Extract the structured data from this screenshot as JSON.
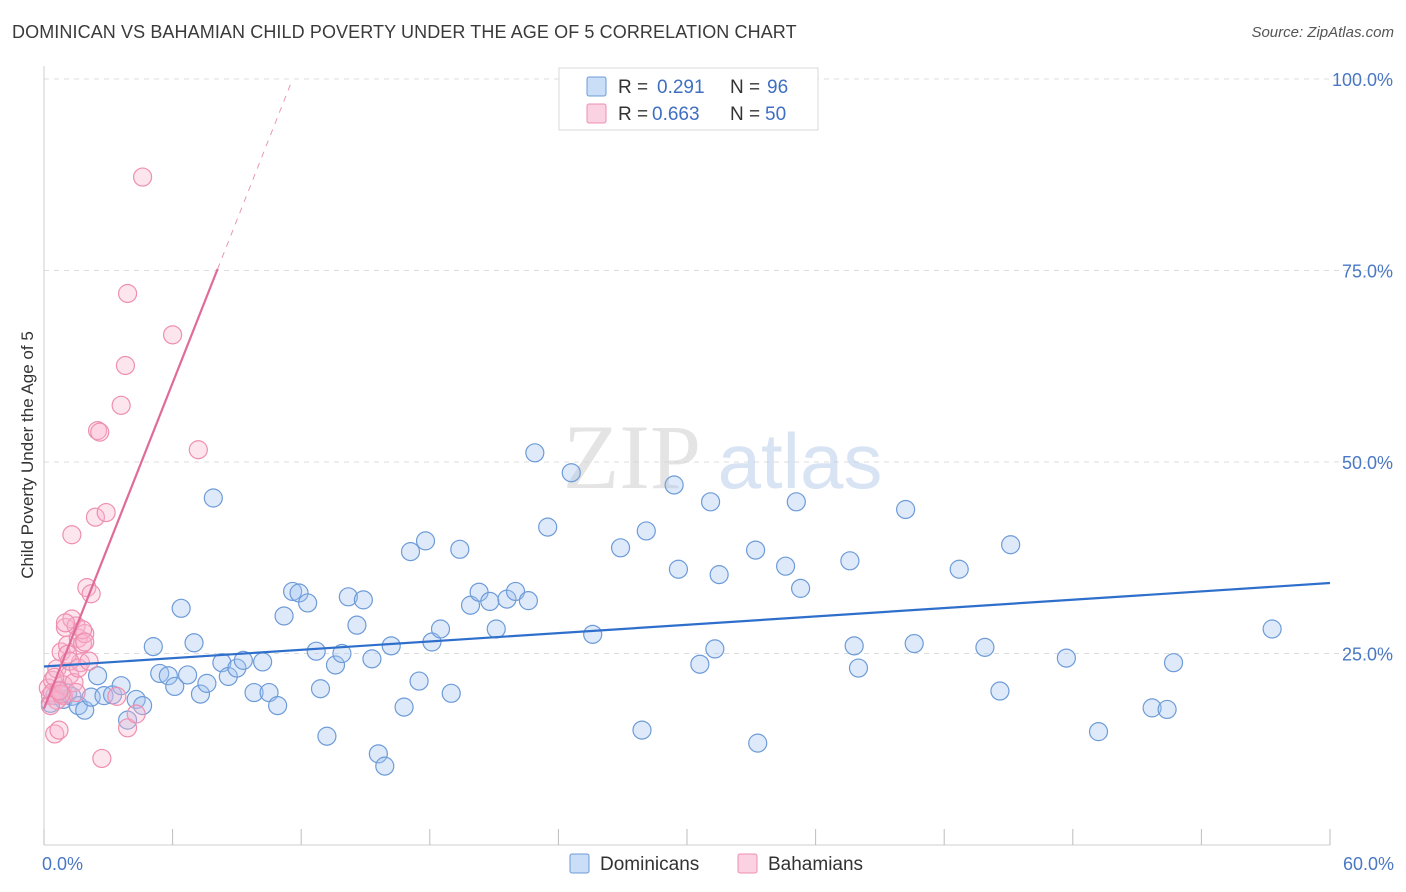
{
  "title": "DOMINICAN VS BAHAMIAN CHILD POVERTY UNDER THE AGE OF 5 CORRELATION CHART",
  "source": "Source: ZipAtlas.com",
  "watermark": {
    "zip": "ZIP",
    "atlas": "atlas"
  },
  "colors": {
    "dominicans_fill": "rgba(160,195,240,0.35)",
    "dominicans_stroke": "#6d9bd8",
    "dominicans_line": "#2f6fcc",
    "bahamians_fill": "rgba(248,180,205,0.35)",
    "bahamians_stroke": "#ee8fb0",
    "bahamians_line": "#e06b98",
    "tick_label": "#4a78c4",
    "grid": "#dcdcdc"
  },
  "legend": {
    "rows": [
      {
        "r_label": "R = ",
        "r_value": "0.291",
        "n_label": "N = ",
        "n_value": "96"
      },
      {
        "r_label": "R = ",
        "r_value": "0.663",
        "n_label": "N = ",
        "n_value": "50"
      }
    ],
    "bottom": [
      "Dominicans",
      "Bahamians"
    ]
  },
  "chart_data": {
    "type": "scatter",
    "title": "DOMINICAN VS BAHAMIAN CHILD POVERTY UNDER THE AGE OF 5 CORRELATION CHART",
    "xlabel": "",
    "ylabel": "Child Poverty Under the Age of 5",
    "xlim": [
      0,
      60
    ],
    "ylim": [
      0,
      100
    ],
    "x_tick_labels": [
      "0.0%",
      "60.0%"
    ],
    "y_ticks": [
      25,
      50,
      75,
      100
    ],
    "y_tick_labels": [
      "25.0%",
      "50.0%",
      "75.0%",
      "100.0%"
    ],
    "grid": true,
    "legend_position": "top-center",
    "series": [
      {
        "name": "Dominicans",
        "r": 0.291,
        "n": 96,
        "trend": {
          "x": [
            0,
            60
          ],
          "y": [
            23.3,
            34.2
          ]
        },
        "points": [
          [
            0.3,
            18.5
          ],
          [
            0.5,
            19.5
          ],
          [
            0.7,
            20.2
          ],
          [
            0.9,
            19.0
          ],
          [
            1.1,
            19.8
          ],
          [
            1.3,
            19.4
          ],
          [
            1.6,
            18.2
          ],
          [
            1.9,
            17.6
          ],
          [
            2.2,
            19.3
          ],
          [
            2.5,
            22.1
          ],
          [
            2.8,
            19.5
          ],
          [
            3.2,
            19.6
          ],
          [
            3.6,
            20.8
          ],
          [
            3.9,
            16.3
          ],
          [
            4.3,
            19.0
          ],
          [
            4.6,
            18.2
          ],
          [
            5.1,
            25.9
          ],
          [
            5.4,
            22.4
          ],
          [
            5.8,
            22.1
          ],
          [
            6.1,
            20.7
          ],
          [
            6.4,
            30.9
          ],
          [
            6.7,
            22.2
          ],
          [
            7.0,
            26.4
          ],
          [
            7.3,
            19.7
          ],
          [
            7.6,
            21.1
          ],
          [
            7.9,
            45.3
          ],
          [
            8.3,
            23.8
          ],
          [
            8.6,
            22.0
          ],
          [
            9.0,
            23.1
          ],
          [
            9.3,
            24.1
          ],
          [
            9.8,
            19.9
          ],
          [
            10.2,
            23.9
          ],
          [
            10.5,
            19.9
          ],
          [
            10.9,
            18.2
          ],
          [
            11.2,
            29.9
          ],
          [
            11.6,
            33.1
          ],
          [
            11.9,
            32.9
          ],
          [
            12.3,
            31.6
          ],
          [
            12.7,
            25.3
          ],
          [
            12.9,
            20.4
          ],
          [
            13.2,
            14.2
          ],
          [
            13.6,
            23.5
          ],
          [
            13.9,
            25.0
          ],
          [
            14.2,
            32.4
          ],
          [
            14.6,
            28.7
          ],
          [
            14.9,
            32.0
          ],
          [
            15.3,
            24.3
          ],
          [
            15.6,
            11.9
          ],
          [
            15.9,
            10.3
          ],
          [
            16.2,
            26.0
          ],
          [
            16.8,
            18.0
          ],
          [
            17.1,
            38.3
          ],
          [
            17.5,
            21.4
          ],
          [
            17.8,
            39.7
          ],
          [
            18.1,
            26.5
          ],
          [
            18.5,
            28.2
          ],
          [
            19.0,
            19.8
          ],
          [
            19.4,
            38.6
          ],
          [
            19.9,
            31.3
          ],
          [
            20.3,
            33.0
          ],
          [
            20.8,
            31.8
          ],
          [
            21.1,
            28.2
          ],
          [
            21.6,
            32.1
          ],
          [
            22.0,
            33.1
          ],
          [
            22.6,
            31.9
          ],
          [
            22.9,
            51.2
          ],
          [
            23.5,
            41.5
          ],
          [
            24.6,
            48.6
          ],
          [
            25.6,
            27.5
          ],
          [
            26.9,
            38.8
          ],
          [
            27.9,
            15.0
          ],
          [
            28.1,
            41.0
          ],
          [
            29.4,
            47.0
          ],
          [
            29.6,
            36.0
          ],
          [
            30.6,
            23.6
          ],
          [
            31.1,
            44.8
          ],
          [
            31.3,
            25.6
          ],
          [
            31.5,
            35.3
          ],
          [
            33.2,
            38.5
          ],
          [
            33.3,
            13.3
          ],
          [
            34.6,
            36.4
          ],
          [
            35.1,
            44.8
          ],
          [
            35.3,
            33.5
          ],
          [
            37.6,
            37.1
          ],
          [
            37.8,
            26.0
          ],
          [
            38.0,
            23.1
          ],
          [
            40.2,
            43.8
          ],
          [
            40.6,
            26.3
          ],
          [
            42.7,
            36.0
          ],
          [
            43.9,
            25.8
          ],
          [
            44.6,
            20.1
          ],
          [
            45.1,
            39.2
          ],
          [
            47.7,
            24.4
          ],
          [
            49.2,
            14.8
          ],
          [
            51.7,
            17.9
          ],
          [
            52.4,
            17.7
          ],
          [
            52.7,
            23.8
          ],
          [
            57.3,
            28.2
          ]
        ]
      },
      {
        "name": "Bahamians",
        "r": 0.663,
        "n": 50,
        "trend": {
          "x": [
            0,
            8.1
          ],
          "y": [
            17.8,
            75.2
          ]
        },
        "trend_dashed": {
          "x": [
            8.1,
            11.5
          ],
          "y": [
            75.2,
            99.3
          ]
        },
        "points": [
          [
            0.2,
            20.5
          ],
          [
            0.3,
            19.5
          ],
          [
            0.4,
            21.5
          ],
          [
            0.5,
            14.5
          ],
          [
            0.6,
            23.0
          ],
          [
            0.7,
            15.0
          ],
          [
            0.8,
            25.2
          ],
          [
            0.9,
            19.5
          ],
          [
            1.0,
            28.4
          ],
          [
            1.1,
            26.1
          ],
          [
            1.2,
            22.2
          ],
          [
            1.3,
            29.5
          ],
          [
            1.5,
            28.6
          ],
          [
            1.6,
            27.0
          ],
          [
            1.7,
            23.8
          ],
          [
            1.8,
            26.3
          ],
          [
            1.9,
            27.6
          ],
          [
            2.0,
            33.6
          ],
          [
            2.2,
            32.8
          ],
          [
            2.4,
            42.8
          ],
          [
            2.5,
            54.1
          ],
          [
            2.6,
            53.9
          ],
          [
            2.7,
            11.3
          ],
          [
            2.9,
            43.4
          ],
          [
            3.4,
            19.4
          ],
          [
            3.6,
            57.4
          ],
          [
            3.8,
            62.6
          ],
          [
            3.9,
            72.0
          ],
          [
            3.9,
            15.3
          ],
          [
            4.3,
            17.1
          ],
          [
            4.6,
            87.2
          ],
          [
            6.0,
            66.6
          ],
          [
            7.2,
            51.6
          ],
          [
            0.4,
            19.9
          ],
          [
            0.6,
            18.9
          ],
          [
            0.9,
            20.9
          ],
          [
            1.1,
            24.9
          ],
          [
            1.4,
            21.2
          ],
          [
            1.5,
            19.9
          ],
          [
            1.8,
            28.1
          ],
          [
            0.3,
            18.2
          ],
          [
            0.5,
            21.9
          ],
          [
            0.8,
            19.7
          ],
          [
            1.2,
            24.0
          ],
          [
            1.6,
            23.1
          ],
          [
            1.3,
            40.5
          ],
          [
            2.1,
            24.0
          ],
          [
            0.7,
            20.1
          ],
          [
            1.0,
            29.0
          ],
          [
            1.9,
            26.5
          ]
        ]
      }
    ]
  }
}
